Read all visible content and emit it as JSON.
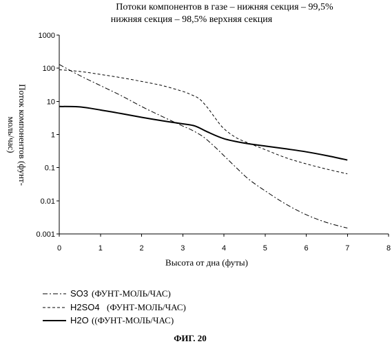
{
  "chart_data": {
    "type": "line",
    "title_lines": [
      "Потоки компонентов в газе – нижняя секция – 99,5%",
      "нижняя секция – 98,5% верхняя секция"
    ],
    "xlabel": "Высота от дна (футы)",
    "ylabel_lines": [
      "Поток компонентов (фунт-",
      "моль/час)"
    ],
    "xlim": [
      0,
      8
    ],
    "ylim": [
      0.001,
      1000
    ],
    "yscale": "log",
    "xticks": [
      "0",
      "1",
      "2",
      "3",
      "4",
      "5",
      "6",
      "7",
      "8"
    ],
    "yticks": [
      "0.001",
      "0.01",
      "0.1",
      "1",
      "10",
      "100",
      "1000"
    ],
    "grid": false,
    "legend_position": "bottom-left",
    "series": [
      {
        "name": "SO3",
        "unit": "(ФУНТ-МОЛЬ/ЧАС)",
        "style": "dash-dot",
        "x": [
          0,
          0.5,
          1,
          1.5,
          2,
          2.5,
          3,
          3.2,
          3.5,
          3.8,
          4,
          4.3,
          4.6,
          5,
          5.5,
          6,
          6.5,
          7
        ],
        "y": [
          130,
          60,
          30,
          15,
          7,
          3.5,
          1.8,
          1.4,
          0.85,
          0.4,
          0.23,
          0.1,
          0.045,
          0.02,
          0.008,
          0.0038,
          0.0022,
          0.0015
        ]
      },
      {
        "name": "H2SO4",
        "unit": "(ФУНТ-МОЛЬ/ЧАС)",
        "style": "dashed",
        "x": [
          0,
          0.5,
          1,
          1.5,
          2,
          2.5,
          3,
          3.2,
          3.4,
          3.6,
          3.8,
          4,
          4.3,
          4.6,
          5,
          5.5,
          6,
          6.5,
          7
        ],
        "y": [
          90,
          80,
          65,
          52,
          40,
          30,
          20,
          16,
          12,
          6.5,
          3,
          1.5,
          0.8,
          0.55,
          0.35,
          0.2,
          0.13,
          0.09,
          0.065
        ]
      },
      {
        "name": "H2O",
        "unit": "((ФУНТ-МОЛЬ/ЧАС)",
        "style": "solid",
        "x": [
          0,
          0.5,
          1,
          1.5,
          2,
          2.5,
          3,
          3.3,
          3.6,
          4,
          4.5,
          5,
          5.5,
          6,
          6.5,
          7
        ],
        "y": [
          7,
          6.8,
          5.5,
          4.3,
          3.3,
          2.6,
          2.1,
          1.8,
          1.2,
          0.75,
          0.55,
          0.45,
          0.37,
          0.3,
          0.23,
          0.17
        ]
      }
    ]
  },
  "caption": "ФИГ. 20",
  "colors": {
    "ink": "#000000",
    "background": "#ffffff"
  }
}
